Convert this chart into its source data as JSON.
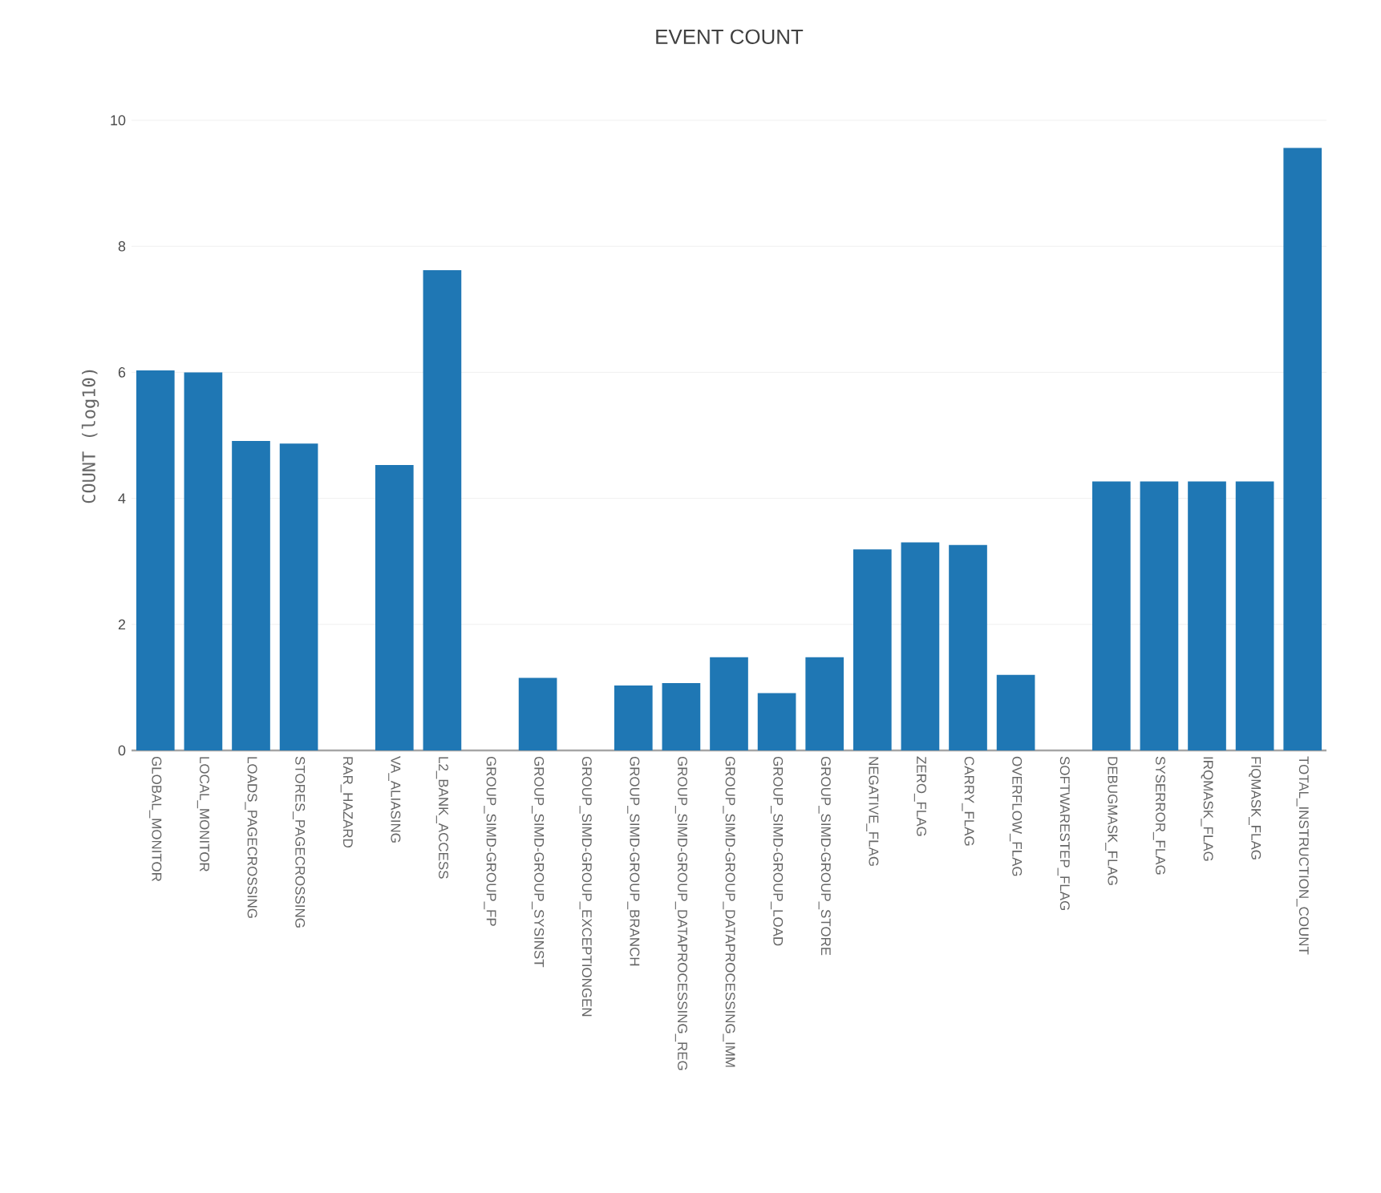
{
  "chart_data": {
    "type": "bar",
    "title": "EVENT COUNT",
    "ylabel": "COUNT (log10)",
    "categories": [
      "GLOBAL_MONITOR",
      "LOCAL_MONITOR",
      "LOADS_PAGECROSSING",
      "STORES_PAGECROSSING",
      "RAR_HAZARD",
      "VA_ALIASING",
      "L2_BANK_ACCESS",
      "GROUP_SIMD-GROUP_FP",
      "GROUP_SIMD-GROUP_SYSINST",
      "GROUP_SIMD-GROUP_EXCEPTIONGEN",
      "GROUP_SIMD-GROUP_BRANCH",
      "GROUP_SIMD-GROUP_DATAPROCESSING_REG",
      "GROUP_SIMD-GROUP_DATAPROCESSING_IMM",
      "GROUP_SIMD-GROUP_LOAD",
      "GROUP_SIMD-GROUP_STORE",
      "NEGATIVE_FLAG",
      "ZERO_FLAG",
      "CARRY_FLAG",
      "OVERFLOW_FLAG",
      "SOFTWARESTEP_FLAG",
      "DEBUGMASK_FLAG",
      "SYSERROR_FLAG",
      "IRQMASK_FLAG",
      "FIQMASK_FLAG",
      "TOTAL_INSTRUCTION_COUNT"
    ],
    "values": [
      6.03,
      6.0,
      4.91,
      4.87,
      0,
      4.53,
      7.62,
      0,
      1.15,
      0,
      1.03,
      1.07,
      1.48,
      0.91,
      1.48,
      3.19,
      3.3,
      3.26,
      1.2,
      0,
      4.27,
      4.27,
      4.27,
      4.27,
      9.56
    ],
    "color": "#1f77b4",
    "ylim": [
      0,
      10
    ],
    "yticks": [
      0,
      2,
      4,
      6,
      8,
      10
    ],
    "grid": "y"
  }
}
